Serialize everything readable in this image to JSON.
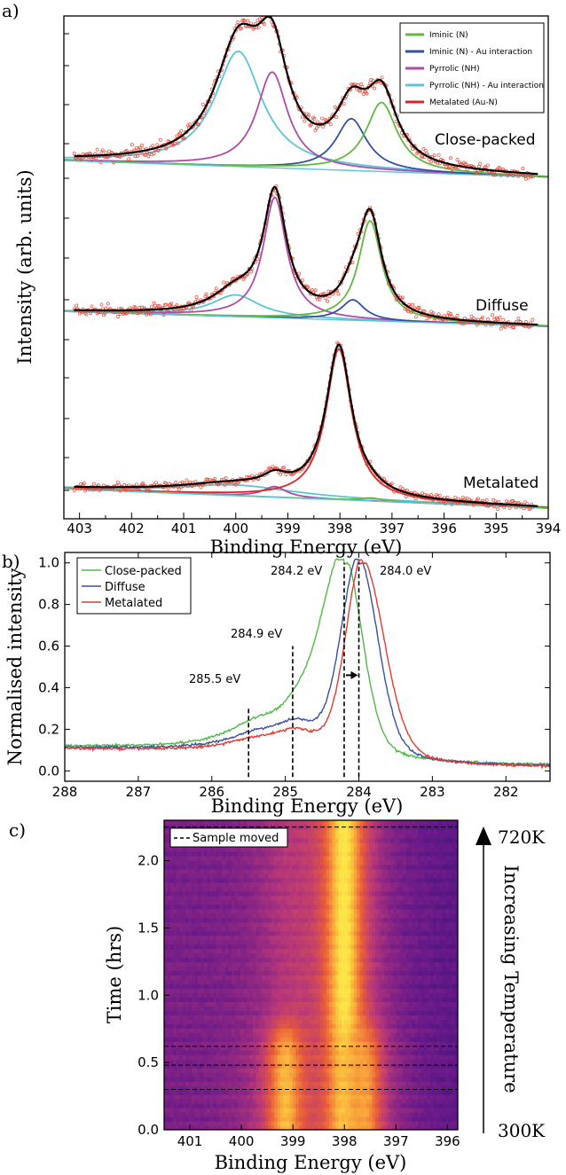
{
  "chart_data": [
    {
      "panel": "a)",
      "type": "line",
      "xlabel": "Binding Energy (eV)",
      "ylabel": "Intensity (arb. units)",
      "xlim": [
        403.3,
        394
      ],
      "x_ticks": [
        "403",
        "402",
        "401",
        "400",
        "399",
        "398",
        "397",
        "396",
        "395",
        "394"
      ],
      "legend_position": "top-right",
      "legend": [
        {
          "label": "Iminic (N)",
          "color": "#62b83f"
        },
        {
          "label": "Iminic (N) - Au interaction",
          "color": "#3450a0"
        },
        {
          "label": "Pyrrolic (NH)",
          "color": "#b04aa8"
        },
        {
          "label": "Pyrrolic (NH) - Au interaction",
          "color": "#5bc4d8"
        },
        {
          "label": "Metalated (Au-N)",
          "color": "#e02424"
        }
      ],
      "data_color": "#e84a3a",
      "fit_color": "#000000",
      "spectra": [
        {
          "label": "Close-packed",
          "base": 0.0,
          "peaks": [
            {
              "component": "Pyrrolic (NH) - Au interaction",
              "center": 399.95,
              "height": 1.0
            },
            {
              "component": "Pyrrolic (NH)",
              "center": 399.3,
              "height": 0.83
            },
            {
              "component": "Iminic (N) - Au interaction",
              "center": 397.78,
              "height": 0.45
            },
            {
              "component": "Iminic (N)",
              "center": 397.2,
              "height": 0.6
            }
          ]
        },
        {
          "label": "Diffuse",
          "base": 0.0,
          "peaks": [
            {
              "component": "Pyrrolic (NH) - Au interaction",
              "center": 400.0,
              "height": 0.18
            },
            {
              "component": "Pyrrolic (NH)",
              "center": 399.25,
              "height": 1.0
            },
            {
              "component": "Iminic (N) - Au interaction",
              "center": 397.75,
              "height": 0.17
            },
            {
              "component": "Iminic (N)",
              "center": 397.42,
              "height": 0.83
            }
          ]
        },
        {
          "label": "Metalated",
          "base": 0.0,
          "peaks": [
            {
              "component": "Pyrrolic (NH) - Au interaction",
              "center": 400.0,
              "height": 0.07
            },
            {
              "component": "Pyrrolic (NH)",
              "center": 399.25,
              "height": 0.07
            },
            {
              "component": "Metalated (Au-N)",
              "center": 398.02,
              "height": 1.0
            },
            {
              "component": "Iminic (N)",
              "center": 397.4,
              "height": 0.02
            }
          ]
        }
      ]
    },
    {
      "panel": "b)",
      "type": "line",
      "xlabel": "Binding Energy (eV)",
      "ylabel": "Normalised intensity",
      "xlim": [
        288,
        281.4
      ],
      "ylim": [
        -0.05,
        1.05
      ],
      "x_ticks": [
        "288",
        "287",
        "286",
        "285",
        "284",
        "283",
        "282"
      ],
      "y_ticks": [
        "0.0",
        "0.2",
        "0.4",
        "0.6",
        "0.8",
        "1.0"
      ],
      "legend_position": "top-left",
      "series": [
        {
          "name": "Close-packed",
          "color": "#52b848",
          "peak": 284.2
        },
        {
          "name": "Diffuse",
          "color": "#3b4fa0",
          "peak": 284.0
        },
        {
          "name": "Metalated",
          "color": "#e23a30",
          "peak": 283.95
        }
      ],
      "annotations": [
        {
          "text": "284.2 eV",
          "x": 284.2
        },
        {
          "text": "284.0 eV",
          "x": 284.0
        },
        {
          "text": "284.9 eV",
          "x": 284.9
        },
        {
          "text": "285.5 eV",
          "x": 285.5
        }
      ]
    },
    {
      "panel": "c)",
      "type": "heatmap",
      "xlabel": "Binding Energy (eV)",
      "ylabel": "Time (hrs)",
      "xlim": [
        401.5,
        395.8
      ],
      "ylim": [
        0.0,
        2.3
      ],
      "x_ticks": [
        "401",
        "400",
        "399",
        "398",
        "397",
        "396"
      ],
      "y_ticks": [
        "0.0",
        "0.5",
        "1.0",
        "1.5",
        "2.0"
      ],
      "legend": "Sample moved",
      "sample_moved_times": [
        0.3,
        0.48,
        0.62,
        2.25
      ],
      "temperature_label": "Increasing Temperature",
      "temp_start": "300K",
      "temp_end": "720K",
      "colormap": [
        "#24106b",
        "#6a1a8a",
        "#b73779",
        "#e85c3a",
        "#f9a53a",
        "#fbe547"
      ]
    }
  ]
}
